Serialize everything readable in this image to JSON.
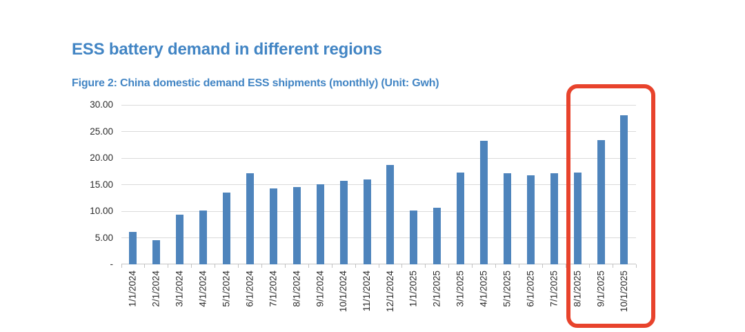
{
  "header": {
    "title": "ESS battery demand in different regions",
    "caption": "Figure 2: China domestic demand ESS shipments (monthly) (Unit: Gwh)"
  },
  "colors": {
    "title_blue": "#4285C4",
    "bar_blue": "#4E84BC",
    "highlight_red": "#E8432C",
    "gridline_gray": "#DADADA",
    "axis_gray": "#C3C3C3",
    "tick_label": "#2B2B2B"
  },
  "chart_data": {
    "type": "bar",
    "title": "Figure 2: China domestic demand ESS shipments (monthly) (Unit: Gwh)",
    "unit": "Gwh",
    "categories": [
      "1/1/2024",
      "2/1/2024",
      "3/1/2024",
      "4/1/2024",
      "5/1/2024",
      "6/1/2024",
      "7/1/2024",
      "8/1/2024",
      "9/1/2024",
      "10/1/2024",
      "11/1/2024",
      "12/1/2024",
      "1/1/2025",
      "2/1/2025",
      "3/1/2025",
      "4/1/2025",
      "5/1/2025",
      "6/1/2025",
      "7/1/2025",
      "8/1/2025",
      "9/1/2025",
      "10/1/2025"
    ],
    "values": [
      6.1,
      4.5,
      9.3,
      10.1,
      13.5,
      17.2,
      14.3,
      14.6,
      15.1,
      15.7,
      16.0,
      18.7,
      10.1,
      10.7,
      17.3,
      23.2,
      17.2,
      16.7,
      17.2,
      17.3,
      23.4,
      28.0
    ],
    "xlabel": "",
    "ylabel": "",
    "ylim": [
      0,
      30
    ],
    "yticks": [
      0,
      5,
      10,
      15,
      20,
      25,
      30
    ],
    "ytick_labels": [
      "-",
      "5.00",
      "10.00",
      "15.00",
      "20.00",
      "25.00",
      "30.00"
    ],
    "grid": "horizontal",
    "legend": false,
    "highlight": {
      "categories": [
        "8/1/2025",
        "9/1/2025",
        "10/1/2025"
      ],
      "style": "red-rounded-box"
    }
  }
}
